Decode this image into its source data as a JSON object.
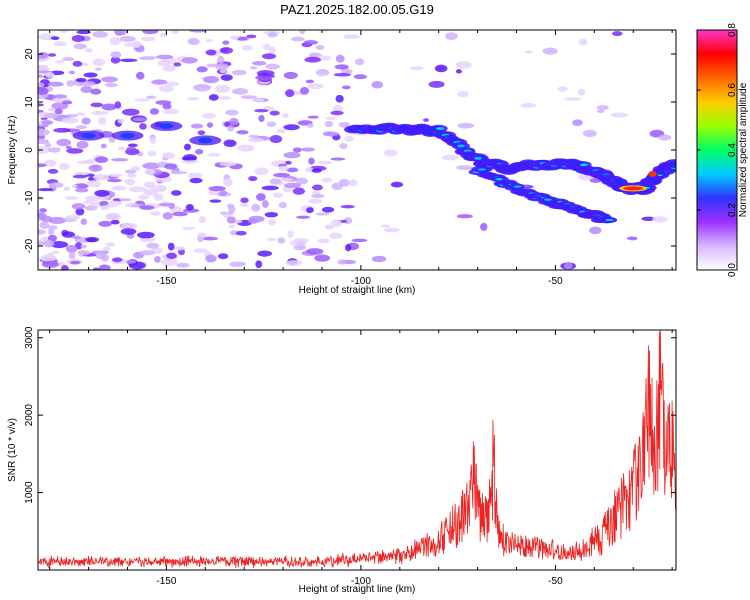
{
  "title": "PAZ1.2025.182.00.05.G19",
  "chart_data": [
    {
      "type": "heatmap",
      "xlabel": "Height of straight line (km)",
      "ylabel": "Frequency (Hz)",
      "xlim": [
        -183,
        -19
      ],
      "ylim": [
        -25,
        25
      ],
      "xticks": [
        -150,
        -100,
        -50
      ],
      "yticks": [
        -20,
        -10,
        0,
        10,
        20
      ],
      "colorbar": {
        "label": "Normalized spectral amplitude",
        "range": [
          0,
          0.8
        ],
        "ticks": [
          "0.0",
          "0.2",
          "0.4",
          "0.6",
          "0.8"
        ],
        "colors": [
          "#ffffff",
          "#d8b8ff",
          "#9b30ff",
          "#3333ff",
          "#00ccff",
          "#00ff66",
          "#99ff00",
          "#ffcc00",
          "#ff6600",
          "#ff0000",
          "#ff33cc"
        ]
      },
      "ridge": {
        "main_branch": [
          {
            "x": -102,
            "y": 4
          },
          {
            "x": -90,
            "y": 4.5
          },
          {
            "x": -80,
            "y": 4
          },
          {
            "x": -70,
            "y": -2
          },
          {
            "x": -62,
            "y": -4
          },
          {
            "x": -55,
            "y": -3
          },
          {
            "x": -45,
            "y": -3
          },
          {
            "x": -38,
            "y": -5
          },
          {
            "x": -32,
            "y": -8
          },
          {
            "x": -27,
            "y": -8
          },
          {
            "x": -22,
            "y": -4
          },
          {
            "x": -19,
            "y": -3
          }
        ],
        "lower_branch": [
          {
            "x": -70,
            "y": -4
          },
          {
            "x": -60,
            "y": -8
          },
          {
            "x": -50,
            "y": -11
          },
          {
            "x": -42,
            "y": -13
          },
          {
            "x": -36,
            "y": -15
          }
        ],
        "left_feature": [
          {
            "x": -170,
            "y": 3
          },
          {
            "x": -160,
            "y": 3
          },
          {
            "x": -150,
            "y": 5
          },
          {
            "x": -140,
            "y": 2
          }
        ]
      }
    },
    {
      "type": "line",
      "xlabel": "Height of straight line (km)",
      "ylabel": "SNR (10 * v/v)",
      "xlim": [
        -183,
        -19
      ],
      "ylim": [
        0,
        3100
      ],
      "xticks": [
        -150,
        -100,
        -50
      ],
      "yticks": [
        1000,
        2000,
        3000
      ],
      "color": "#ee2222",
      "envelope": [
        {
          "x": -183,
          "y": 150
        },
        {
          "x": -110,
          "y": 150
        },
        {
          "x": -90,
          "y": 250
        },
        {
          "x": -80,
          "y": 500
        },
        {
          "x": -72,
          "y": 1100
        },
        {
          "x": -67,
          "y": 900
        },
        {
          "x": -63,
          "y": 500
        },
        {
          "x": -55,
          "y": 400
        },
        {
          "x": -45,
          "y": 300
        },
        {
          "x": -38,
          "y": 600
        },
        {
          "x": -32,
          "y": 1200
        },
        {
          "x": -27,
          "y": 2000
        },
        {
          "x": -23,
          "y": 2200
        },
        {
          "x": -19,
          "y": 2000
        }
      ],
      "peaks": [
        {
          "x": -71,
          "y": 1800
        },
        {
          "x": -66,
          "y": 1900
        },
        {
          "x": -26,
          "y": 2800
        },
        {
          "x": -23,
          "y": 3100
        },
        {
          "x": -20,
          "y": 2400
        }
      ]
    }
  ]
}
